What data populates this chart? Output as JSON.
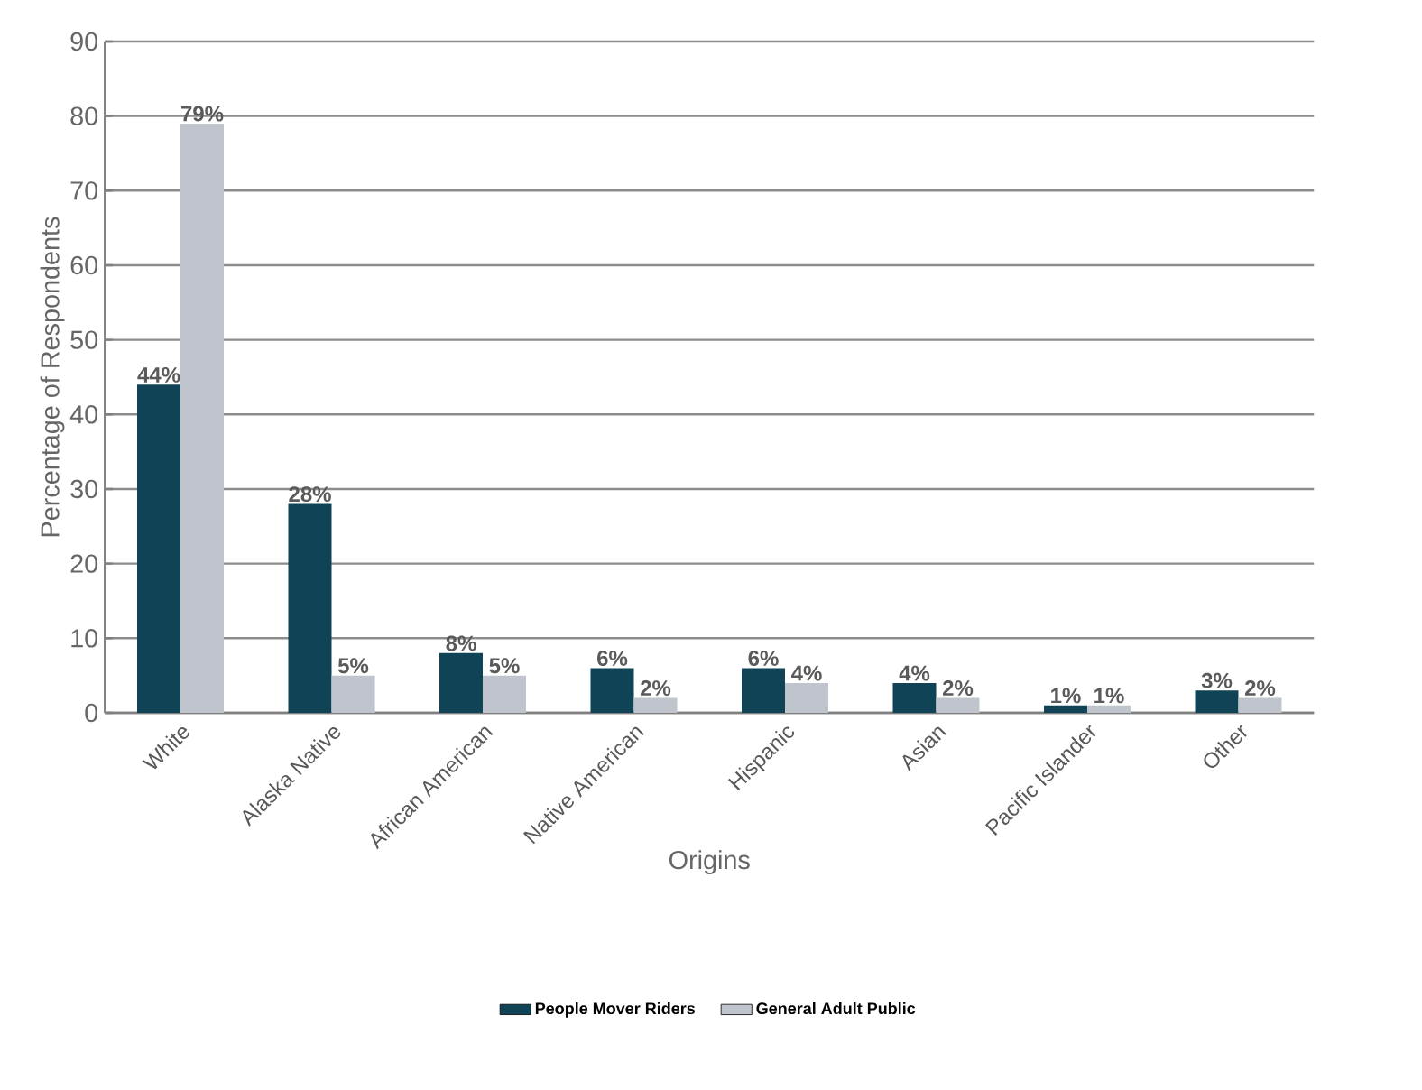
{
  "chart_data": {
    "type": "bar",
    "xlabel": "Origins",
    "ylabel": "Percentage of Respondents",
    "categories": [
      "White",
      "Alaska Native",
      "African American",
      "Native American",
      "Hispanic",
      "Asian",
      "Pacific Islander",
      "Other"
    ],
    "series": [
      {
        "name": "People Mover Riders",
        "color": "#0f4355",
        "values": [
          44,
          28,
          8,
          6,
          6,
          4,
          1,
          3
        ],
        "value_labels": [
          "44%",
          "28%",
          "8%",
          "6%",
          "6%",
          "4%",
          "1%",
          "3%"
        ]
      },
      {
        "name": "General Adult Public",
        "color": "#c0c4cc",
        "values": [
          79,
          5,
          5,
          2,
          4,
          2,
          1,
          2
        ],
        "value_labels": [
          "79%",
          "5%",
          "5%",
          "2%",
          "4%",
          "2%",
          "1%",
          "2%"
        ]
      }
    ],
    "ylim": [
      0,
      90
    ],
    "yticks": [
      0,
      10,
      20,
      30,
      40,
      50,
      60,
      70,
      80,
      90
    ],
    "grid": "y",
    "legend": "bottom"
  }
}
